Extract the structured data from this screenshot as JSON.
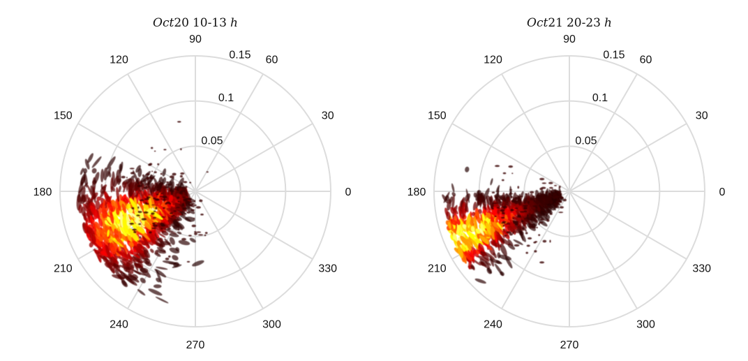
{
  "chart_data": [
    {
      "type": "polar-density",
      "title": {
        "var1": "Oct",
        "num": "20",
        "range": "10-13",
        "var2": "h"
      },
      "theta_ticks": [
        "0",
        "30",
        "60",
        "90",
        "120",
        "150",
        "180",
        "210",
        "240",
        "270",
        "300",
        "330"
      ],
      "r_ticks": [
        "0.05",
        "0.1",
        "0.15"
      ],
      "r_values": [
        0.05,
        0.1,
        0.15
      ],
      "rlim": [
        0,
        0.15
      ],
      "colormap": "hot",
      "density_direction_deg": 205,
      "density_extent": [
        0.01,
        0.13
      ],
      "density_peak_r": 0.075,
      "density_spread_deg": 22
    },
    {
      "type": "polar-density",
      "title": {
        "var1": "Oct",
        "num": "21",
        "range": "20-23",
        "var2": "h"
      },
      "theta_ticks": [
        "0",
        "30",
        "60",
        "90",
        "120",
        "150",
        "180",
        "210",
        "240",
        "270",
        "300",
        "330"
      ],
      "r_ticks": [
        "0.05",
        "0.1",
        "0.15"
      ],
      "r_values": [
        0.05,
        0.1,
        0.15
      ],
      "rlim": [
        0,
        0.15
      ],
      "colormap": "hot",
      "density_direction_deg": 203,
      "density_extent": [
        0.01,
        0.14
      ],
      "density_peak_r": 0.12,
      "density_spread_deg": 12
    }
  ]
}
